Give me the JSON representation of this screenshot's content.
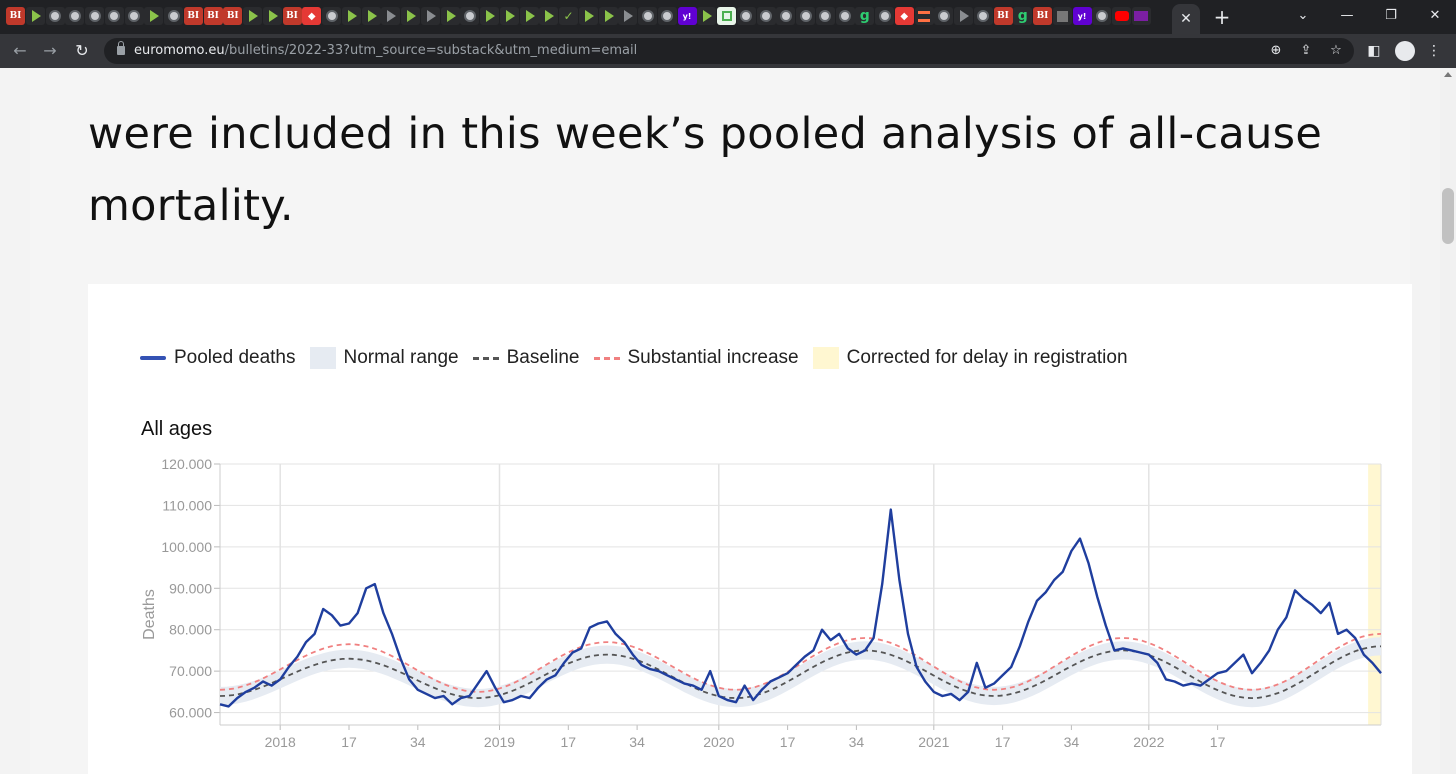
{
  "browser": {
    "tab_icons": [
      "bi",
      "play",
      "globe",
      "globe",
      "globe",
      "globe",
      "globe",
      "play",
      "globe",
      "bi",
      "bi",
      "bi",
      "play",
      "play",
      "bi",
      "red",
      "globe",
      "play",
      "play",
      "play-grey",
      "play",
      "play-grey",
      "play",
      "globe",
      "play",
      "play",
      "play",
      "play",
      "check",
      "play",
      "play",
      "play-grey",
      "globe",
      "globe",
      "yahoo",
      "play",
      "map",
      "globe",
      "globe",
      "globe",
      "globe",
      "globe",
      "globe",
      "g",
      "globe",
      "red",
      "orange",
      "globe",
      "play-grey",
      "globe",
      "bi",
      "g",
      "bi",
      "box",
      "yahoo",
      "globe",
      "yt",
      "mail"
    ],
    "active_tab_close": "✕",
    "new_tab": "+",
    "url_host": "euromomo.eu",
    "url_path": "/bulletins/2022-33?utm_source=substack&utm_medium=email"
  },
  "article": {
    "text_line_top": "were included in this week’s pooled analysis of all-cause",
    "text_line_bottom": "mortality."
  },
  "chart_data": {
    "type": "line",
    "title": "All ages",
    "ylabel": "Deaths",
    "ylim": [
      57000,
      120000
    ],
    "y_ticks": [
      "60.000",
      "70.000",
      "80.000",
      "90.000",
      "100.000",
      "110.000",
      "120.000"
    ],
    "x_ticks": [
      "2018",
      "17",
      "34",
      "2019",
      "17",
      "34",
      "2020",
      "17",
      "34",
      "2021",
      "17",
      "34",
      "2022",
      "17"
    ],
    "legend": [
      "Pooled deaths",
      "Normal range",
      "Baseline",
      "Substantial increase",
      "Corrected for delay in registration"
    ],
    "colors": {
      "pooled": "#1f3e9e",
      "normal_range": "#e6ebf2",
      "baseline": "#555555",
      "substantial": "#f08080",
      "corrected": "#fff7d1"
    },
    "x_range": [
      0,
      270
    ],
    "week_ticks": [
      14,
      30,
      46,
      65,
      81,
      97,
      116,
      132,
      148,
      166,
      182,
      198,
      216,
      232
    ],
    "corrected_range": [
      267,
      270
    ],
    "pooled_deaths": [
      [
        0,
        62000
      ],
      [
        2,
        61500
      ],
      [
        4,
        63500
      ],
      [
        6,
        65000
      ],
      [
        8,
        66000
      ],
      [
        10,
        67500
      ],
      [
        12,
        66500
      ],
      [
        14,
        68000
      ],
      [
        16,
        71000
      ],
      [
        18,
        73500
      ],
      [
        20,
        77000
      ],
      [
        22,
        79000
      ],
      [
        24,
        85000
      ],
      [
        26,
        83500
      ],
      [
        28,
        81000
      ],
      [
        30,
        81500
      ],
      [
        32,
        84000
      ],
      [
        34,
        90000
      ],
      [
        36,
        91000
      ],
      [
        38,
        84000
      ],
      [
        40,
        79000
      ],
      [
        42,
        73000
      ],
      [
        44,
        68000
      ],
      [
        46,
        65500
      ],
      [
        48,
        64500
      ],
      [
        50,
        63500
      ],
      [
        52,
        64000
      ],
      [
        54,
        62000
      ],
      [
        56,
        63500
      ],
      [
        58,
        64000
      ],
      [
        60,
        67000
      ],
      [
        62,
        70000
      ],
      [
        64,
        66000
      ],
      [
        66,
        62500
      ],
      [
        68,
        63000
      ],
      [
        70,
        64000
      ],
      [
        72,
        63500
      ],
      [
        74,
        66000
      ],
      [
        76,
        68000
      ],
      [
        78,
        69000
      ],
      [
        80,
        72000
      ],
      [
        82,
        74500
      ],
      [
        84,
        75500
      ],
      [
        86,
        80500
      ],
      [
        88,
        81500
      ],
      [
        90,
        82000
      ],
      [
        92,
        79000
      ],
      [
        94,
        77000
      ],
      [
        96,
        74000
      ],
      [
        98,
        71500
      ],
      [
        100,
        70500
      ],
      [
        102,
        70000
      ],
      [
        104,
        69000
      ],
      [
        106,
        68000
      ],
      [
        108,
        67000
      ],
      [
        110,
        66500
      ],
      [
        112,
        65500
      ],
      [
        114,
        70000
      ],
      [
        116,
        64000
      ],
      [
        118,
        63000
      ],
      [
        120,
        62500
      ],
      [
        122,
        66500
      ],
      [
        124,
        63000
      ],
      [
        126,
        65500
      ],
      [
        128,
        67500
      ],
      [
        130,
        68500
      ],
      [
        132,
        69500
      ],
      [
        134,
        71500
      ],
      [
        136,
        73500
      ],
      [
        138,
        75000
      ],
      [
        140,
        80000
      ],
      [
        142,
        77500
      ],
      [
        144,
        79000
      ],
      [
        146,
        75500
      ],
      [
        148,
        74000
      ],
      [
        150,
        75000
      ],
      [
        152,
        78000
      ],
      [
        154,
        91000
      ],
      [
        156,
        109000
      ],
      [
        158,
        92000
      ],
      [
        160,
        79000
      ],
      [
        162,
        71000
      ],
      [
        164,
        67500
      ],
      [
        166,
        65000
      ],
      [
        168,
        64000
      ],
      [
        170,
        64500
      ],
      [
        172,
        63000
      ],
      [
        174,
        65000
      ],
      [
        176,
        72000
      ],
      [
        178,
        66000
      ],
      [
        180,
        67000
      ],
      [
        182,
        69000
      ],
      [
        184,
        71000
      ],
      [
        186,
        76000
      ],
      [
        188,
        82000
      ],
      [
        190,
        87000
      ],
      [
        192,
        89000
      ],
      [
        194,
        92000
      ],
      [
        196,
        94000
      ],
      [
        198,
        99000
      ],
      [
        200,
        102000
      ],
      [
        202,
        96000
      ],
      [
        204,
        88000
      ],
      [
        206,
        81000
      ],
      [
        208,
        75000
      ],
      [
        210,
        75500
      ],
      [
        212,
        75000
      ],
      [
        214,
        74500
      ],
      [
        216,
        74000
      ],
      [
        218,
        72000
      ],
      [
        220,
        68000
      ],
      [
        222,
        67500
      ],
      [
        224,
        66500
      ],
      [
        226,
        67000
      ],
      [
        228,
        66500
      ],
      [
        230,
        68000
      ],
      [
        232,
        69500
      ],
      [
        234,
        70000
      ],
      [
        236,
        72000
      ],
      [
        238,
        74000
      ],
      [
        240,
        69500
      ],
      [
        242,
        72000
      ],
      [
        244,
        75000
      ],
      [
        246,
        80000
      ],
      [
        248,
        83000
      ],
      [
        250,
        89500
      ],
      [
        252,
        87500
      ],
      [
        254,
        86000
      ],
      [
        256,
        84000
      ],
      [
        258,
        86500
      ],
      [
        260,
        79000
      ],
      [
        262,
        80000
      ],
      [
        264,
        78000
      ],
      [
        266,
        74000
      ],
      [
        268,
        72000
      ],
      [
        270,
        69500
      ]
    ],
    "baseline_points": [
      [
        0,
        64000
      ],
      [
        30,
        73000
      ],
      [
        60,
        63500
      ],
      [
        90,
        74000
      ],
      [
        120,
        63500
      ],
      [
        150,
        75000
      ],
      [
        180,
        64000
      ],
      [
        210,
        75000
      ],
      [
        240,
        63500
      ],
      [
        270,
        76000
      ]
    ],
    "substantial_points": [
      [
        0,
        65500
      ],
      [
        30,
        76500
      ],
      [
        60,
        65000
      ],
      [
        90,
        77000
      ],
      [
        120,
        65500
      ],
      [
        150,
        78000
      ],
      [
        180,
        65500
      ],
      [
        210,
        78000
      ],
      [
        240,
        65500
      ],
      [
        270,
        79000
      ]
    ]
  }
}
